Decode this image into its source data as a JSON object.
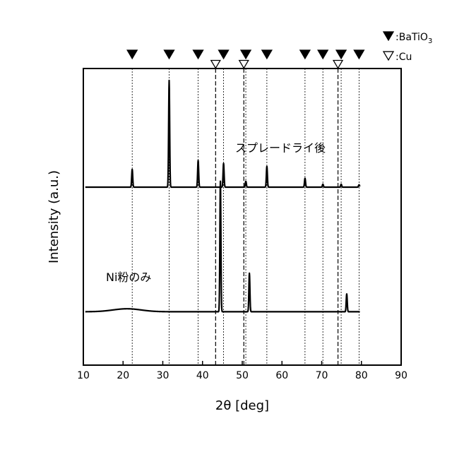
{
  "chart_data": {
    "type": "line",
    "xlabel": "2θ [deg]",
    "ylabel": "Intensity (a.u.)",
    "xlim": [
      10,
      90
    ],
    "xticks": [
      10,
      20,
      30,
      40,
      50,
      60,
      70,
      80,
      90
    ],
    "yticks": "none",
    "grid": false,
    "legend_position": "top-right",
    "legend": [
      {
        "symbol": "filled-down-triangle",
        "label_main": ":BaTiO",
        "label_sub": "3"
      },
      {
        "symbol": "open-down-triangle",
        "label_main": ":Cu",
        "label_sub": ""
      }
    ],
    "series": [
      {
        "name": "スプレードライ後",
        "baseline": 0.6,
        "peaks": [
          {
            "x": 22.3,
            "h": 0.06
          },
          {
            "x": 31.6,
            "h": 0.36
          },
          {
            "x": 38.9,
            "h": 0.09
          },
          {
            "x": 45.3,
            "h": 0.08
          },
          {
            "x": 50.9,
            "h": 0.02
          },
          {
            "x": 56.2,
            "h": 0.07
          },
          {
            "x": 65.8,
            "h": 0.03
          },
          {
            "x": 70.3,
            "h": 0.01
          },
          {
            "x": 74.9,
            "h": 0.01
          },
          {
            "x": 79.4,
            "h": 0.008
          }
        ]
      },
      {
        "name": "Ni粉のみ",
        "baseline": 0.18,
        "hump": {
          "x": 21.0,
          "h": 0.01
        },
        "peaks": [
          {
            "x": 44.5,
            "h": 0.44
          },
          {
            "x": 51.8,
            "h": 0.13
          },
          {
            "x": 76.3,
            "h": 0.06
          }
        ]
      }
    ],
    "reference_markers": {
      "BaTiO3": [
        22.3,
        31.6,
        38.9,
        45.3,
        50.9,
        56.2,
        65.8,
        70.3,
        74.9,
        79.4
      ],
      "Cu": [
        43.3,
        50.4,
        74.1
      ]
    }
  }
}
